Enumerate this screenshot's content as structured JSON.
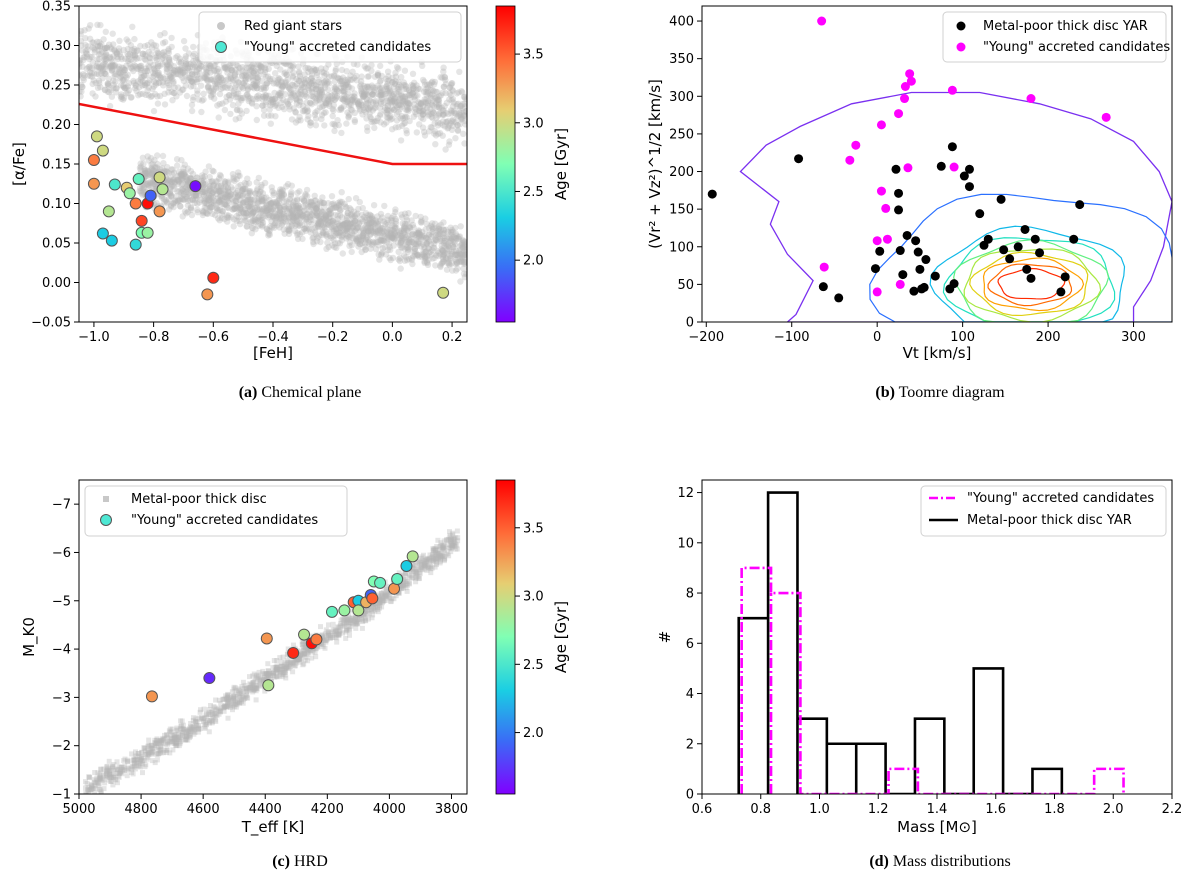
{
  "figure": {
    "captions": {
      "a": {
        "tag": "(a)",
        "text": " Chemical plane"
      },
      "b": {
        "tag": "(b)",
        "text": " Toomre diagram"
      },
      "c": {
        "tag": "(c)",
        "text": " HRD"
      },
      "d": {
        "tag": "(d)",
        "text": " Mass distributions"
      }
    }
  },
  "chart_data": [
    {
      "id": "chemical-plane",
      "type": "scatter",
      "xlabel": "[FeH]",
      "ylabel": "[α/Fe]",
      "xlim": [
        -1.05,
        0.25
      ],
      "ylim": [
        -0.05,
        0.35
      ],
      "xticks": [
        -1.0,
        -0.8,
        -0.6,
        -0.4,
        -0.2,
        0.0,
        0.2
      ],
      "xticklabels": [
        "−1.0",
        "−0.8",
        "−0.6",
        "−0.4",
        "−0.2",
        "0.0",
        "0.2"
      ],
      "yticks": [
        -0.05,
        0.0,
        0.05,
        0.1,
        0.15,
        0.2,
        0.25,
        0.3,
        0.35
      ],
      "yticklabels": [
        "−0.05",
        "0.00",
        "0.05",
        "0.10",
        "0.15",
        "0.20",
        "0.25",
        "0.30",
        "0.35"
      ],
      "legend": [
        "Red giant stars",
        "\"Young\" accreted candidates"
      ],
      "colorbar": {
        "label": "Age [Gyr]",
        "range": [
          1.55,
          3.85
        ],
        "ticks": [
          2.0,
          2.5,
          3.0,
          3.5
        ],
        "ticklabels": [
          "2.0",
          "2.5",
          "3.0",
          "3.5"
        ]
      },
      "background_bands": [
        {
          "x": [
            -1.05,
            0.25
          ],
          "y_center": [
            0.28,
            0.22
          ],
          "half_width": 0.06
        },
        {
          "x": [
            -0.85,
            0.25
          ],
          "y_center": [
            0.13,
            0.04
          ],
          "half_width": 0.045
        }
      ],
      "separation_line": [
        [
          -1.05,
          0.226
        ],
        [
          0.0,
          0.15
        ],
        [
          0.25,
          0.15
        ]
      ],
      "candidates": [
        {
          "x": -0.99,
          "y": 0.185,
          "age": 3.0
        },
        {
          "x": -0.97,
          "y": 0.167,
          "age": 3.0
        },
        {
          "x": -1.0,
          "y": 0.155,
          "age": 3.4
        },
        {
          "x": -1.0,
          "y": 0.125,
          "age": 3.3
        },
        {
          "x": -0.97,
          "y": 0.062,
          "age": 2.3
        },
        {
          "x": -0.94,
          "y": 0.053,
          "age": 2.3
        },
        {
          "x": -0.95,
          "y": 0.09,
          "age": 2.9
        },
        {
          "x": -0.93,
          "y": 0.124,
          "age": 2.5
        },
        {
          "x": -0.89,
          "y": 0.12,
          "age": 3.1
        },
        {
          "x": -0.88,
          "y": 0.113,
          "age": 2.8
        },
        {
          "x": -0.86,
          "y": 0.1,
          "age": 3.4
        },
        {
          "x": -0.85,
          "y": 0.131,
          "age": 2.6
        },
        {
          "x": -0.86,
          "y": 0.048,
          "age": 2.4
        },
        {
          "x": -0.84,
          "y": 0.063,
          "age": 2.7
        },
        {
          "x": -0.82,
          "y": 0.063,
          "age": 2.8
        },
        {
          "x": -0.84,
          "y": 0.078,
          "age": 3.6
        },
        {
          "x": -0.82,
          "y": 0.1,
          "age": 3.8
        },
        {
          "x": -0.81,
          "y": 0.11,
          "age": 1.9
        },
        {
          "x": -0.78,
          "y": 0.133,
          "age": 3.0
        },
        {
          "x": -0.77,
          "y": 0.118,
          "age": 2.9
        },
        {
          "x": -0.78,
          "y": 0.09,
          "age": 3.3
        },
        {
          "x": -0.66,
          "y": 0.122,
          "age": 1.6
        },
        {
          "x": -0.62,
          "y": -0.015,
          "age": 3.3
        },
        {
          "x": -0.6,
          "y": 0.006,
          "age": 3.7
        },
        {
          "x": 0.17,
          "y": -0.013,
          "age": 3.0
        }
      ]
    },
    {
      "id": "toomre-diagram",
      "type": "scatter",
      "xlabel": "Vt [km/s]",
      "ylabel": "(Vr² + Vz²)^1/2 [km/s]",
      "xlim": [
        -205,
        345
      ],
      "ylim": [
        0,
        420
      ],
      "xticks": [
        -200,
        -100,
        0,
        100,
        200,
        300
      ],
      "xticklabels": [
        "−200",
        "−100",
        "0",
        "100",
        "200",
        "300"
      ],
      "yticks": [
        0,
        50,
        100,
        150,
        200,
        250,
        300,
        350,
        400
      ],
      "yticklabels": [
        "0",
        "50",
        "100",
        "150",
        "200",
        "250",
        "300",
        "350",
        "400"
      ],
      "legend": [
        "Metal-poor thick disc YAR",
        "\"Young\" accreted candidates"
      ],
      "contour_centre": [
        180,
        50
      ],
      "contours": [
        {
          "rx": 38,
          "ry": 20,
          "color": "#ff2a00"
        },
        {
          "rx": 48,
          "ry": 27,
          "color": "#ff6a00"
        },
        {
          "rx": 58,
          "ry": 34,
          "color": "#ffa000"
        },
        {
          "rx": 68,
          "ry": 41,
          "color": "#e0d010"
        },
        {
          "rx": 78,
          "ry": 48,
          "color": "#a8e840"
        },
        {
          "rx": 88,
          "ry": 56,
          "color": "#60f080"
        },
        {
          "rx": 98,
          "ry": 63,
          "color": "#20e0c0"
        },
        {
          "rx": 112,
          "ry": 74,
          "color": "#10b8e8"
        },
        {
          "rx": 180,
          "ry": 120,
          "color": "#2a70ff"
        }
      ],
      "outer_contour": [
        [
          -105,
          0
        ],
        [
          -95,
          10
        ],
        [
          -75,
          55
        ],
        [
          -105,
          90
        ],
        [
          -125,
          130
        ],
        [
          -115,
          160
        ],
        [
          -160,
          200
        ],
        [
          -130,
          235
        ],
        [
          -90,
          260
        ],
        [
          -30,
          290
        ],
        [
          40,
          305
        ],
        [
          120,
          305
        ],
        [
          190,
          290
        ],
        [
          250,
          270
        ],
        [
          300,
          240
        ],
        [
          330,
          200
        ],
        [
          345,
          160
        ],
        [
          335,
          100
        ],
        [
          320,
          55
        ],
        [
          300,
          20
        ],
        [
          300,
          0
        ]
      ],
      "yar_series": [
        [
          -193,
          170
        ],
        [
          -92,
          217
        ],
        [
          -63,
          47
        ],
        [
          -45,
          32
        ],
        [
          -2,
          71
        ],
        [
          3,
          94
        ],
        [
          22,
          203
        ],
        [
          25,
          171
        ],
        [
          25,
          149
        ],
        [
          27,
          95
        ],
        [
          30,
          63
        ],
        [
          35,
          115
        ],
        [
          43,
          41
        ],
        [
          45,
          108
        ],
        [
          48,
          93
        ],
        [
          50,
          70
        ],
        [
          52,
          44
        ],
        [
          55,
          46
        ],
        [
          57,
          83
        ],
        [
          68,
          61
        ],
        [
          75,
          207
        ],
        [
          85,
          44
        ],
        [
          88,
          233
        ],
        [
          90,
          51
        ],
        [
          102,
          194
        ],
        [
          108,
          203
        ],
        [
          108,
          180
        ],
        [
          120,
          144
        ],
        [
          125,
          102
        ],
        [
          130,
          110
        ],
        [
          145,
          163
        ],
        [
          148,
          96
        ],
        [
          155,
          84
        ],
        [
          165,
          100
        ],
        [
          173,
          123
        ],
        [
          175,
          70
        ],
        [
          180,
          58
        ],
        [
          185,
          110
        ],
        [
          190,
          92
        ],
        [
          215,
          40
        ],
        [
          220,
          60
        ],
        [
          230,
          110
        ],
        [
          237,
          156
        ]
      ],
      "candidate_series": [
        [
          -65,
          400
        ],
        [
          -62,
          73
        ],
        [
          -32,
          215
        ],
        [
          -25,
          235
        ],
        [
          0,
          40
        ],
        [
          0,
          108
        ],
        [
          5,
          262
        ],
        [
          5,
          174
        ],
        [
          10,
          151
        ],
        [
          12,
          110
        ],
        [
          25,
          277
        ],
        [
          27,
          50
        ],
        [
          32,
          297
        ],
        [
          33,
          313
        ],
        [
          36,
          205
        ],
        [
          38,
          330
        ],
        [
          40,
          320
        ],
        [
          88,
          308
        ],
        [
          90,
          206
        ],
        [
          180,
          297
        ],
        [
          268,
          272
        ]
      ]
    },
    {
      "id": "hrd",
      "type": "scatter",
      "xlabel": "T_eff [K]",
      "ylabel": "M_K0",
      "xlim": [
        5000,
        3750
      ],
      "ylim": [
        -1.0,
        -7.5
      ],
      "xticks": [
        5000,
        4800,
        4600,
        4400,
        4200,
        4000,
        3800
      ],
      "xticklabels": [
        "5000",
        "4800",
        "4600",
        "4400",
        "4200",
        "4000",
        "3800"
      ],
      "yticks": [
        -1,
        -2,
        -3,
        -4,
        -5,
        -6,
        -7
      ],
      "yticklabels": [
        "−1",
        "−2",
        "−3",
        "−4",
        "−5",
        "−6",
        "−7"
      ],
      "legend": [
        "Metal-poor thick disc",
        "\"Young\" accreted candidates"
      ],
      "colorbar": {
        "label": "Age [Gyr]",
        "range": [
          1.55,
          3.85
        ],
        "ticks": [
          2.0,
          2.5,
          3.0,
          3.5
        ],
        "ticklabels": [
          "2.0",
          "2.5",
          "3.0",
          "3.5"
        ]
      },
      "branch": {
        "teff": [
          4980,
          4650,
          4350,
          4050,
          3780
        ],
        "mk": [
          -1.1,
          -2.3,
          -3.6,
          -4.9,
          -6.3
        ],
        "scatter": 0.35
      },
      "candidates": [
        {
          "x": 4765,
          "y": -3.02,
          "age": 3.3
        },
        {
          "x": 4580,
          "y": -3.4,
          "age": 1.7
        },
        {
          "x": 4390,
          "y": -3.25,
          "age": 2.9
        },
        {
          "x": 4395,
          "y": -4.22,
          "age": 3.3
        },
        {
          "x": 4310,
          "y": -3.92,
          "age": 3.7
        },
        {
          "x": 4275,
          "y": -4.3,
          "age": 2.9
        },
        {
          "x": 4250,
          "y": -4.12,
          "age": 3.8
        },
        {
          "x": 4235,
          "y": -4.2,
          "age": 3.4
        },
        {
          "x": 4185,
          "y": -4.77,
          "age": 2.6
        },
        {
          "x": 4145,
          "y": -4.8,
          "age": 2.8
        },
        {
          "x": 4115,
          "y": -4.97,
          "age": 3.5
        },
        {
          "x": 4100,
          "y": -5.0,
          "age": 2.3
        },
        {
          "x": 4100,
          "y": -4.8,
          "age": 2.9
        },
        {
          "x": 4075,
          "y": -4.97,
          "age": 3.2
        },
        {
          "x": 4060,
          "y": -5.12,
          "age": 1.9
        },
        {
          "x": 4055,
          "y": -5.05,
          "age": 3.5
        },
        {
          "x": 4050,
          "y": -5.4,
          "age": 2.7
        },
        {
          "x": 4030,
          "y": -5.37,
          "age": 2.6
        },
        {
          "x": 3985,
          "y": -5.25,
          "age": 3.3
        },
        {
          "x": 3975,
          "y": -5.45,
          "age": 2.6
        },
        {
          "x": 3945,
          "y": -5.72,
          "age": 2.3
        },
        {
          "x": 3925,
          "y": -5.92,
          "age": 2.9
        }
      ]
    },
    {
      "id": "mass-distributions",
      "type": "histogram",
      "xlabel": "Mass [M⊙]",
      "ylabel": "#",
      "xlim": [
        0.6,
        2.2
      ],
      "ylim": [
        0,
        12.5
      ],
      "xticks": [
        0.6,
        0.8,
        1.0,
        1.2,
        1.4,
        1.6,
        1.8,
        2.0,
        2.2
      ],
      "xticklabels": [
        "0.6",
        "0.8",
        "1.0",
        "1.2",
        "1.4",
        "1.6",
        "1.8",
        "2.0",
        "2.2"
      ],
      "yticks": [
        0,
        2,
        4,
        6,
        8,
        10,
        12
      ],
      "yticklabels": [
        "0",
        "2",
        "4",
        "6",
        "8",
        "10",
        "12"
      ],
      "legend": [
        "\"Young\" accreted candidates",
        "Metal-poor thick disc YAR"
      ],
      "series": [
        {
          "name": "\"Young\" accreted candidates",
          "color": "#ff00ff",
          "dash": "dashdot",
          "edges": [
            0.735,
            0.835,
            0.935,
            1.035,
            1.135,
            1.235,
            1.335,
            1.435,
            1.535,
            1.635,
            1.735,
            1.835,
            1.935,
            2.035
          ],
          "counts": [
            9,
            8,
            0,
            0,
            0,
            1,
            0,
            0,
            0,
            0,
            0,
            0,
            1
          ]
        },
        {
          "name": "Metal-poor thick disc YAR",
          "color": "#000000",
          "dash": "solid",
          "edges": [
            0.725,
            0.825,
            0.925,
            1.025,
            1.125,
            1.225,
            1.325,
            1.425,
            1.525,
            1.625,
            1.725,
            1.825
          ],
          "counts": [
            7,
            12,
            3,
            2,
            2,
            0,
            3,
            0,
            5,
            0,
            1
          ]
        }
      ]
    }
  ]
}
